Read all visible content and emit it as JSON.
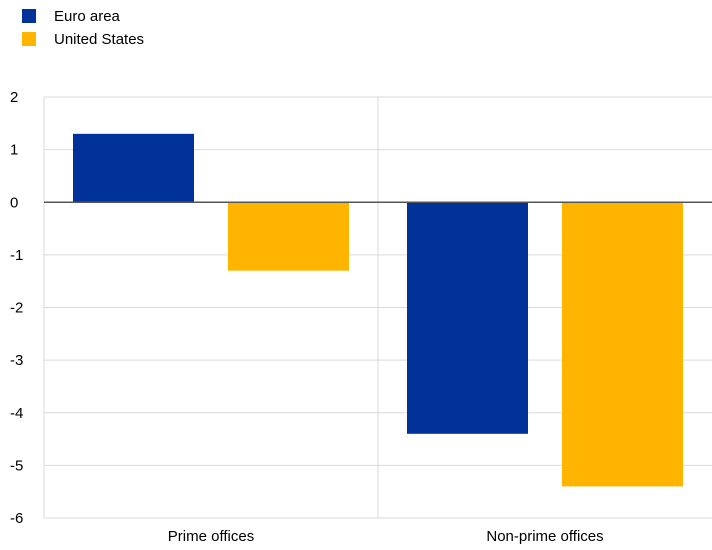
{
  "chart_data": {
    "type": "bar",
    "categories": [
      "Prime offices",
      "Non-prime offices"
    ],
    "series": [
      {
        "name": "Euro area",
        "color": "#003299",
        "values": [
          1.3,
          -4.4
        ]
      },
      {
        "name": "United States",
        "color": "#FFB400",
        "values": [
          -1.3,
          -5.4
        ]
      }
    ],
    "ylim": [
      -6,
      2
    ],
    "yticks": [
      2,
      1,
      0,
      -1,
      -2,
      -3,
      -4,
      -5,
      -6
    ],
    "grid": true,
    "legend_position": "top-left",
    "title": "",
    "xlabel": "",
    "ylabel": ""
  }
}
